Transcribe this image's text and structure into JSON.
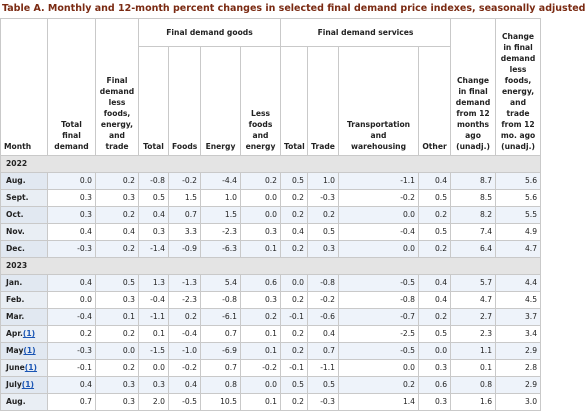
{
  "title": "Table A. Monthly and 12-month percent changes in selected final demand price indexes, seasonally adjusted",
  "header": {
    "month": "Month",
    "groups": {
      "goods": "Final demand goods",
      "services": "Final demand services"
    },
    "columns": [
      "Total final demand",
      "Final demand less foods, energy, and trade",
      "Total",
      "Foods",
      "Energy",
      "Less foods and energy",
      "Total",
      "Trade",
      "Transportation and warehousing",
      "Other",
      "Change in final demand from 12 months ago (unadj.)",
      "Change in final demand less foods, energy, and trade from 12 mo. ago (unadj.)"
    ]
  },
  "sections": [
    {
      "year": "2022",
      "rows": [
        {
          "month": "Aug.",
          "values": [
            "0.0",
            "0.2",
            "-0.8",
            "-0.2",
            "-4.4",
            "0.2",
            "0.5",
            "1.0",
            "-1.1",
            "0.4",
            "8.7",
            "5.6"
          ]
        },
        {
          "month": "Sept.",
          "values": [
            "0.3",
            "0.3",
            "0.5",
            "1.5",
            "1.0",
            "0.0",
            "0.2",
            "-0.3",
            "-0.2",
            "0.5",
            "8.5",
            "5.6"
          ]
        },
        {
          "month": "Oct.",
          "values": [
            "0.3",
            "0.2",
            "0.4",
            "0.7",
            "1.5",
            "0.0",
            "0.2",
            "0.2",
            "0.0",
            "0.2",
            "8.2",
            "5.5"
          ]
        },
        {
          "month": "Nov.",
          "values": [
            "0.4",
            "0.4",
            "0.3",
            "3.3",
            "-2.3",
            "0.3",
            "0.4",
            "0.5",
            "-0.4",
            "0.5",
            "7.4",
            "4.9"
          ]
        },
        {
          "month": "Dec.",
          "values": [
            "-0.3",
            "0.2",
            "-1.4",
            "-0.9",
            "-6.3",
            "0.1",
            "0.2",
            "0.3",
            "0.0",
            "0.2",
            "6.4",
            "4.7"
          ]
        }
      ]
    },
    {
      "year": "2023",
      "rows": [
        {
          "month": "Jan.",
          "values": [
            "0.4",
            "0.5",
            "1.3",
            "-1.3",
            "5.4",
            "0.6",
            "0.0",
            "-0.8",
            "-0.5",
            "0.4",
            "5.7",
            "4.4"
          ]
        },
        {
          "month": "Feb.",
          "values": [
            "0.0",
            "0.3",
            "-0.4",
            "-2.3",
            "-0.8",
            "0.3",
            "0.2",
            "-0.2",
            "-0.8",
            "0.4",
            "4.7",
            "4.5"
          ]
        },
        {
          "month": "Mar.",
          "values": [
            "-0.4",
            "0.1",
            "-1.1",
            "0.2",
            "-6.1",
            "0.2",
            "-0.1",
            "-0.6",
            "-0.7",
            "0.2",
            "2.7",
            "3.7"
          ]
        },
        {
          "month": "Apr.",
          "footnote": "(1)",
          "values": [
            "0.2",
            "0.2",
            "0.1",
            "-0.4",
            "0.7",
            "0.1",
            "0.2",
            "0.4",
            "-2.5",
            "0.5",
            "2.3",
            "3.4"
          ]
        },
        {
          "month": "May",
          "footnote": "(1)",
          "values": [
            "-0.3",
            "0.0",
            "-1.5",
            "-1.0",
            "-6.9",
            "0.1",
            "0.2",
            "0.7",
            "-0.5",
            "0.0",
            "1.1",
            "2.9"
          ]
        },
        {
          "month": "June",
          "footnote": "(1)",
          "values": [
            "-0.1",
            "0.2",
            "0.0",
            "-0.2",
            "0.7",
            "-0.2",
            "-0.1",
            "-1.1",
            "0.0",
            "0.3",
            "0.1",
            "2.8"
          ]
        },
        {
          "month": "July",
          "footnote": "(1)",
          "values": [
            "0.4",
            "0.3",
            "0.3",
            "0.4",
            "0.8",
            "0.0",
            "0.5",
            "0.5",
            "0.2",
            "0.6",
            "0.8",
            "2.9"
          ]
        },
        {
          "month": "Aug.",
          "values": [
            "0.7",
            "0.3",
            "2.0",
            "-0.5",
            "10.5",
            "0.1",
            "0.2",
            "-0.3",
            "1.4",
            "0.3",
            "1.6",
            "3.0"
          ]
        }
      ]
    }
  ]
}
